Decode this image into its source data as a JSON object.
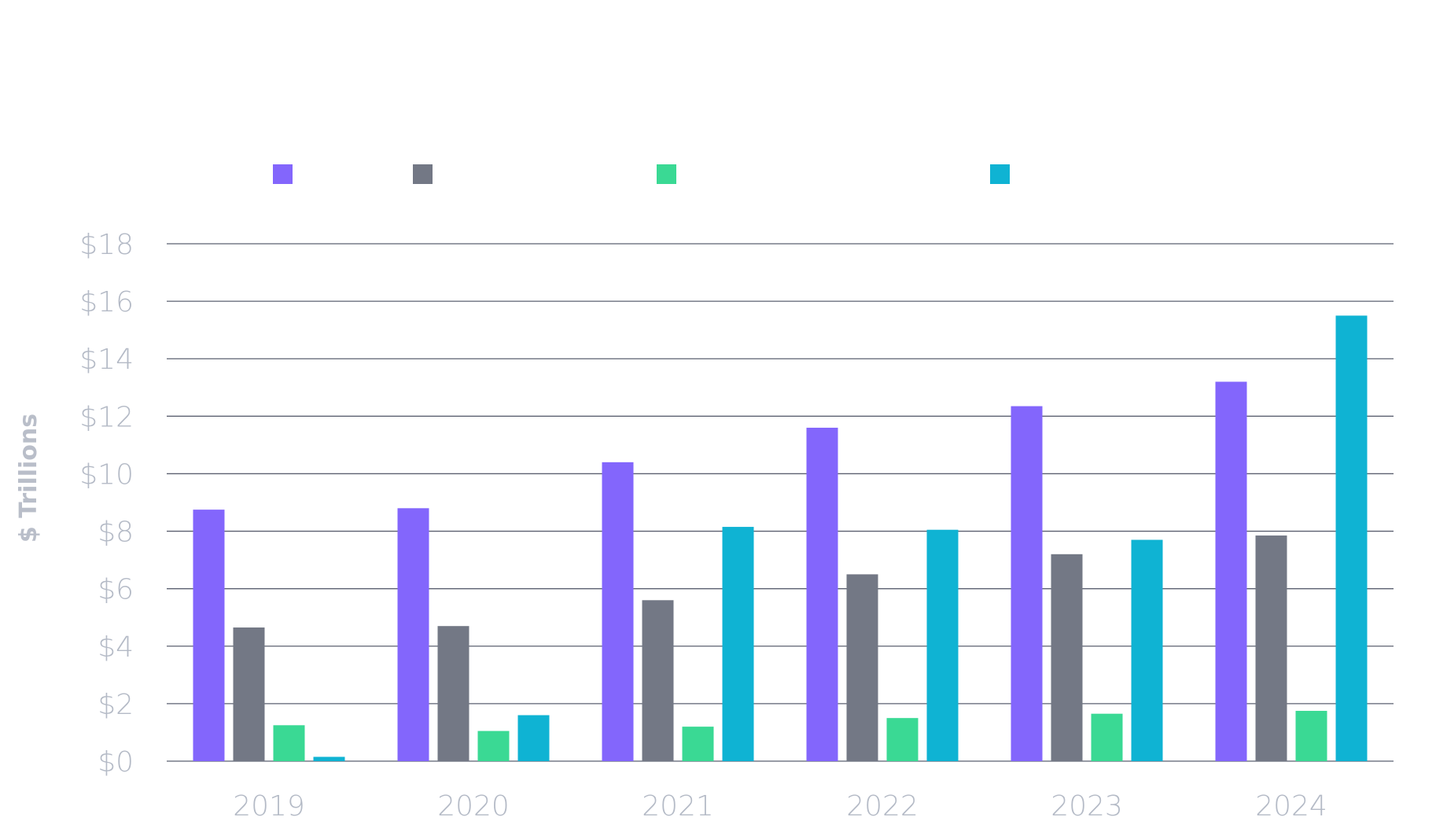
{
  "chart_data": {
    "type": "bar",
    "categories": [
      "2019",
      "2020",
      "2021",
      "2022",
      "2023",
      "2024"
    ],
    "series": [
      {
        "color": "#8366fc",
        "values": [
          8.75,
          8.8,
          10.4,
          11.6,
          12.35,
          13.2
        ]
      },
      {
        "color": "#737885",
        "values": [
          4.65,
          4.7,
          5.6,
          6.5,
          7.2,
          7.85
        ]
      },
      {
        "color": "#3ad994",
        "values": [
          1.25,
          1.05,
          1.2,
          1.5,
          1.65,
          1.75
        ]
      },
      {
        "color": "#0fb3d3",
        "values": [
          0.15,
          1.6,
          8.15,
          8.05,
          7.7,
          15.5
        ]
      }
    ],
    "ylabel": "$ Trillions",
    "ylim": [
      0,
      18
    ],
    "yticks": [
      "$0",
      "$2",
      "$4",
      "$6",
      "$8",
      "$10",
      "$12",
      "$14",
      "$16",
      "$18"
    ],
    "grid": true,
    "legend_position": "top"
  }
}
